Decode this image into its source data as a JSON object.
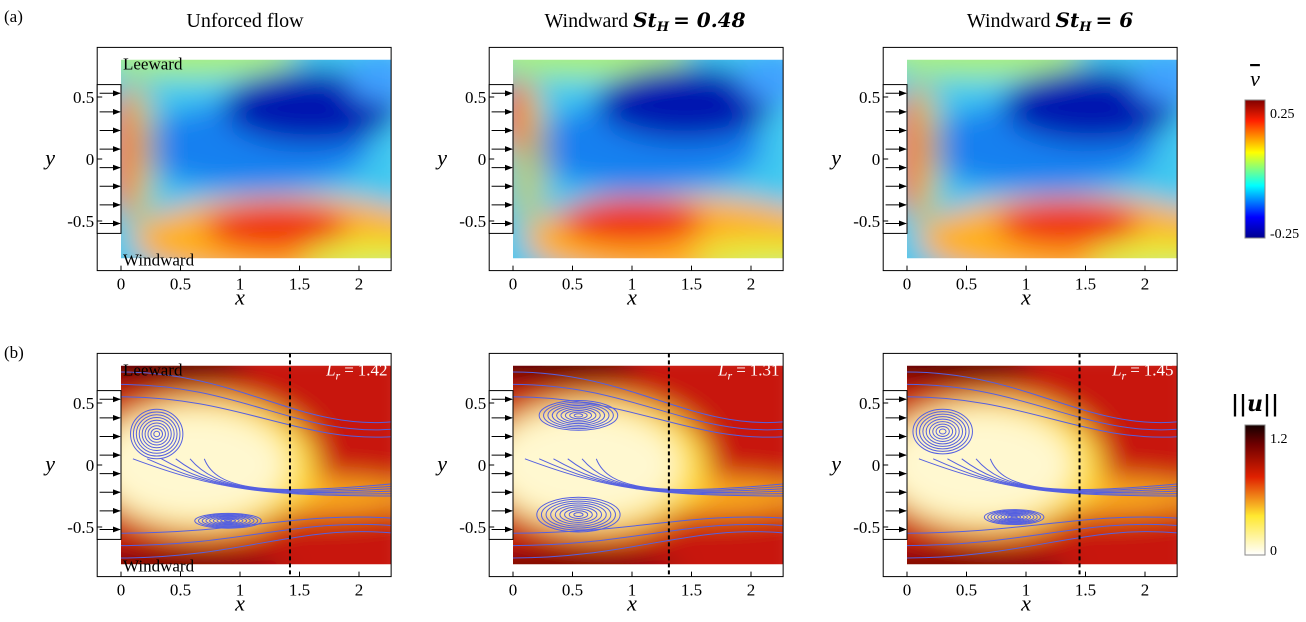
{
  "panel_labels": [
    "(a)",
    "(b)"
  ],
  "columns": [
    {
      "title": "Unforced flow"
    },
    {
      "title": "Windward",
      "param": "St",
      "param_sub": "H",
      "param_eq": "= 0.48"
    },
    {
      "title": "Windward",
      "param": "St",
      "param_sub": "H",
      "param_eq": "= 6"
    }
  ],
  "axes": {
    "xlabel": "x",
    "ylabel": "y",
    "xlim": [
      -0.2,
      2.27
    ],
    "ylim": [
      -0.9,
      0.9
    ],
    "xticks": [
      0,
      0.5,
      1,
      1.5,
      2
    ],
    "yticks": [
      0.5,
      0,
      -0.5
    ]
  },
  "regions": {
    "top": "Leeward",
    "bottom": "Windward"
  },
  "colorbars": [
    {
      "label": "v",
      "max_label": "0.25",
      "min_label": "-0.25"
    },
    {
      "label": "||u||",
      "max_label": "1.2",
      "min_label": "0"
    }
  ],
  "recirculation": {
    "symbol": "L",
    "sub": "r",
    "eq": "=",
    "values": [
      1.42,
      1.31,
      1.45
    ]
  }
}
